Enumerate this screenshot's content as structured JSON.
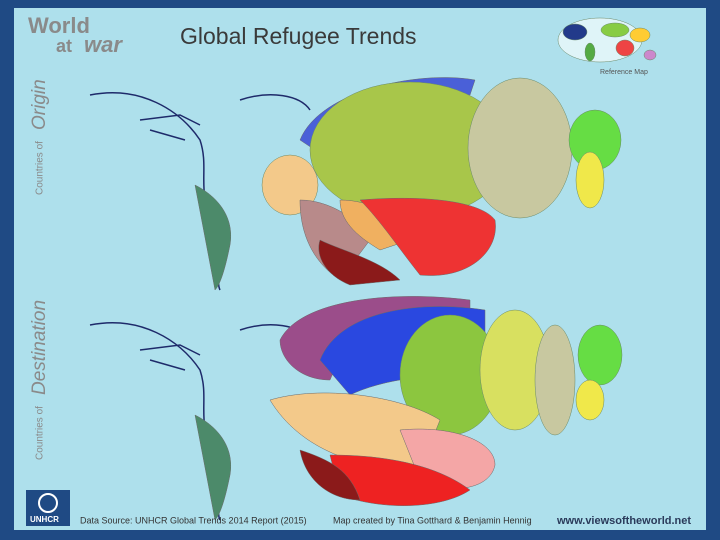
{
  "branding": {
    "line1": "World",
    "line2_prefix": "at",
    "line2_emphasis": "war"
  },
  "title": "Global Refugee Trends",
  "panels": [
    {
      "label_prefix": "Countries of",
      "label": "Origin"
    },
    {
      "label_prefix": "Countries of",
      "label": "Destination"
    }
  ],
  "reference_map": {
    "label": "Reference Map"
  },
  "footer": {
    "logo": "UNHCR",
    "source": "Data Source: UNHCR Global Trends 2014 Report (2015)",
    "credit": "Map created by Tina Gotthard & Benjamin Hennig",
    "website": "www.viewsoftheworld.net"
  }
}
